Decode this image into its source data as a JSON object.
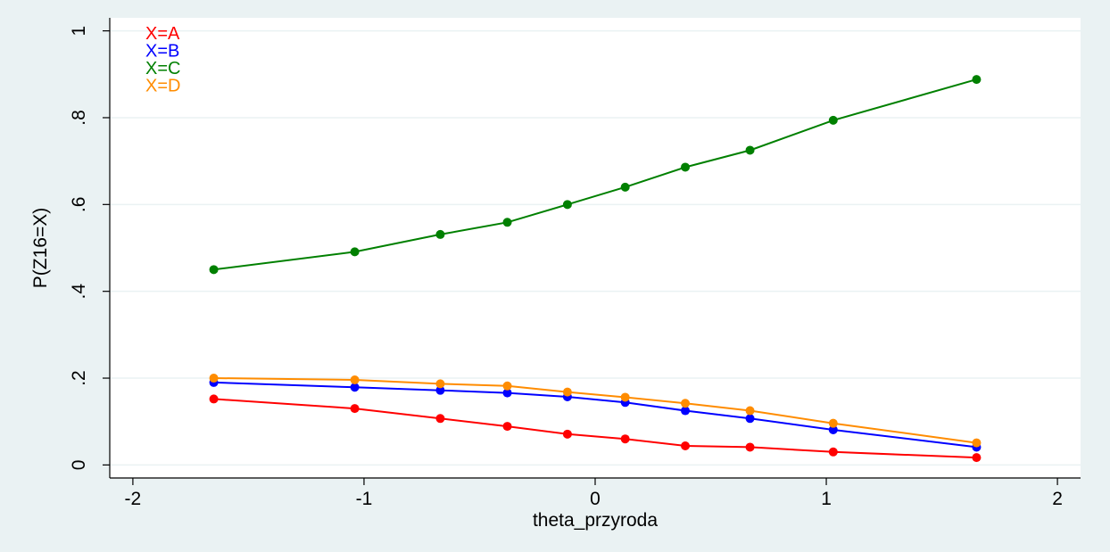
{
  "chart_data": {
    "type": "line",
    "title": "",
    "xlabel": "theta_przyroda",
    "ylabel": "P(Z16=X)",
    "xlim": [
      -2.1,
      2.1
    ],
    "ylim": [
      -0.03,
      1.03
    ],
    "xticks": [
      -2,
      -1,
      0,
      1,
      2
    ],
    "xtick_labels": [
      "-2",
      "-1",
      "0",
      "1",
      "2"
    ],
    "yticks": [
      0,
      0.2,
      0.4,
      0.6,
      0.8,
      1
    ],
    "ytick_labels": [
      "0",
      ".2",
      ".4",
      ".6",
      ".8",
      "1"
    ],
    "grid": "horizontal",
    "legend_position": "top-left",
    "x": [
      -1.65,
      -1.04,
      -0.67,
      -0.38,
      -0.12,
      0.13,
      0.39,
      0.67,
      1.03,
      1.65
    ],
    "series": [
      {
        "name": "X=A",
        "color": "#ff0000",
        "values": [
          0.152,
          0.13,
          0.107,
          0.089,
          0.071,
          0.06,
          0.044,
          0.041,
          0.03,
          0.017
        ]
      },
      {
        "name": "X=B",
        "color": "#0000ff",
        "values": [
          0.19,
          0.179,
          0.172,
          0.166,
          0.157,
          0.144,
          0.125,
          0.107,
          0.081,
          0.041
        ]
      },
      {
        "name": "X=C",
        "color": "#008000",
        "values": [
          0.45,
          0.491,
          0.531,
          0.559,
          0.6,
          0.64,
          0.686,
          0.725,
          0.794,
          0.888
        ]
      },
      {
        "name": "X=D",
        "color": "#ff8c00",
        "values": [
          0.2,
          0.196,
          0.187,
          0.182,
          0.168,
          0.156,
          0.142,
          0.125,
          0.096,
          0.051
        ]
      }
    ]
  }
}
